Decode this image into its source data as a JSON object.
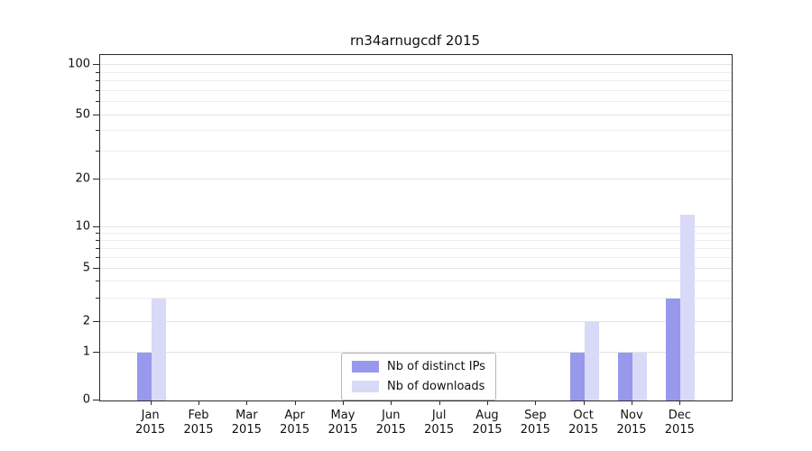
{
  "title": "rn34arnugcdf 2015",
  "chart_data": {
    "type": "bar",
    "title": "rn34arnugcdf 2015",
    "xlabel": "",
    "ylabel": "",
    "yscale": "symlog",
    "ylim": [
      0,
      100
    ],
    "grid": true,
    "legend_position": "bottom-center",
    "yticks": [
      0,
      1,
      2,
      5,
      10,
      20,
      50,
      100
    ],
    "minor_gridlines": [
      3,
      4,
      6,
      7,
      8,
      9,
      30,
      40,
      60,
      70,
      80,
      90
    ],
    "categories": [
      {
        "month": "Jan",
        "year": "2015"
      },
      {
        "month": "Feb",
        "year": "2015"
      },
      {
        "month": "Mar",
        "year": "2015"
      },
      {
        "month": "Apr",
        "year": "2015"
      },
      {
        "month": "May",
        "year": "2015"
      },
      {
        "month": "Jun",
        "year": "2015"
      },
      {
        "month": "Jul",
        "year": "2015"
      },
      {
        "month": "Aug",
        "year": "2015"
      },
      {
        "month": "Sep",
        "year": "2015"
      },
      {
        "month": "Oct",
        "year": "2015"
      },
      {
        "month": "Nov",
        "year": "2015"
      },
      {
        "month": "Dec",
        "year": "2015"
      }
    ],
    "series": [
      {
        "name": "Nb of distinct IPs",
        "color": "#9898ec",
        "values": [
          1,
          0,
          0,
          0,
          0,
          0,
          0,
          0,
          0,
          1,
          1,
          3
        ]
      },
      {
        "name": "Nb of downloads",
        "color": "#d9d9f8",
        "values": [
          3,
          0,
          0,
          0,
          0,
          0,
          0,
          0,
          0,
          2,
          1,
          12
        ]
      }
    ]
  }
}
